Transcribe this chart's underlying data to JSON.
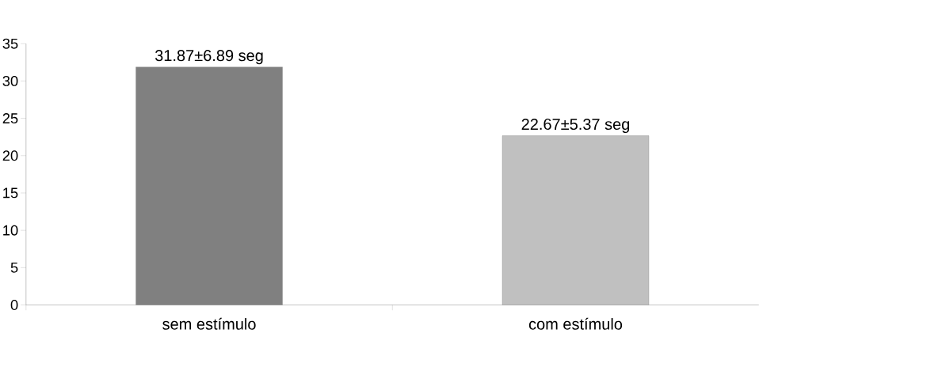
{
  "chart_data": {
    "type": "bar",
    "categories": [
      "sem estímulo",
      "com estímulo"
    ],
    "values": [
      31.87,
      22.67
    ],
    "colors": [
      "#808080",
      "#c0c0c0"
    ],
    "value_labels": [
      "31.87±6.89 seg",
      "22.67±5.37 seg"
    ],
    "ylim": [
      0,
      35
    ],
    "yticks": [
      0,
      5,
      10,
      15,
      20,
      25,
      30,
      35
    ]
  }
}
